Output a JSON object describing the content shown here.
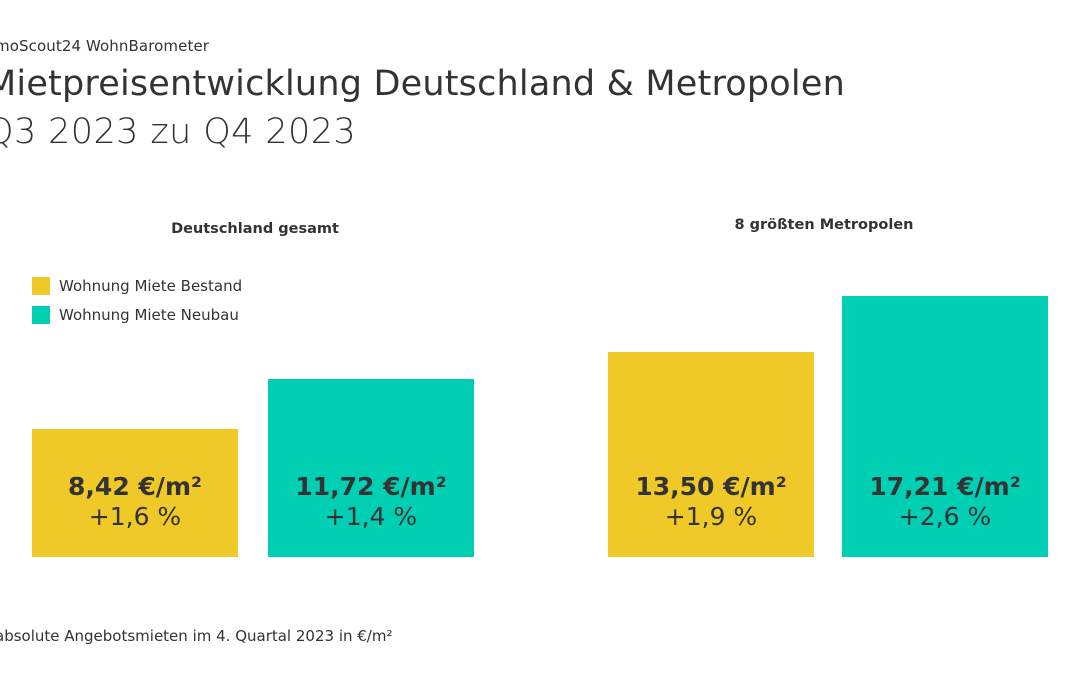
{
  "header": {
    "source": "moScout24 WohnBarometer",
    "title": "Mietpreisentwicklung Deutschland & Metropolen",
    "subtitle": "Q3 2023 zu Q4 2023"
  },
  "colors": {
    "bestand": "#EFC927",
    "neubau": "#00CFB4"
  },
  "chart_data": {
    "type": "bar",
    "categories": [
      "Deutschland gesamt",
      "8 größten Metropolen"
    ],
    "series": [
      {
        "name": "Wohnung Miete Bestand",
        "values": [
          8.42,
          13.5
        ],
        "value_labels": [
          "8,42 €/m²",
          "13,50 €/m²"
        ],
        "change_labels": [
          "+1,6 %",
          "+1,9 %"
        ]
      },
      {
        "name": "Wohnung Miete Neubau",
        "values": [
          11.72,
          17.21
        ],
        "value_labels": [
          "11,72 €/m²",
          "17,21 €/m²"
        ],
        "change_labels": [
          "+1,4 %",
          "+2,6 %"
        ]
      }
    ],
    "title": "",
    "xlabel": "",
    "ylabel": "",
    "ylim": [
      0,
      24
    ],
    "legend_position": "top-left",
    "grid": false
  },
  "footnote": "absolute Angebotsmieten im 4. Quartal 2023 in €/m²"
}
